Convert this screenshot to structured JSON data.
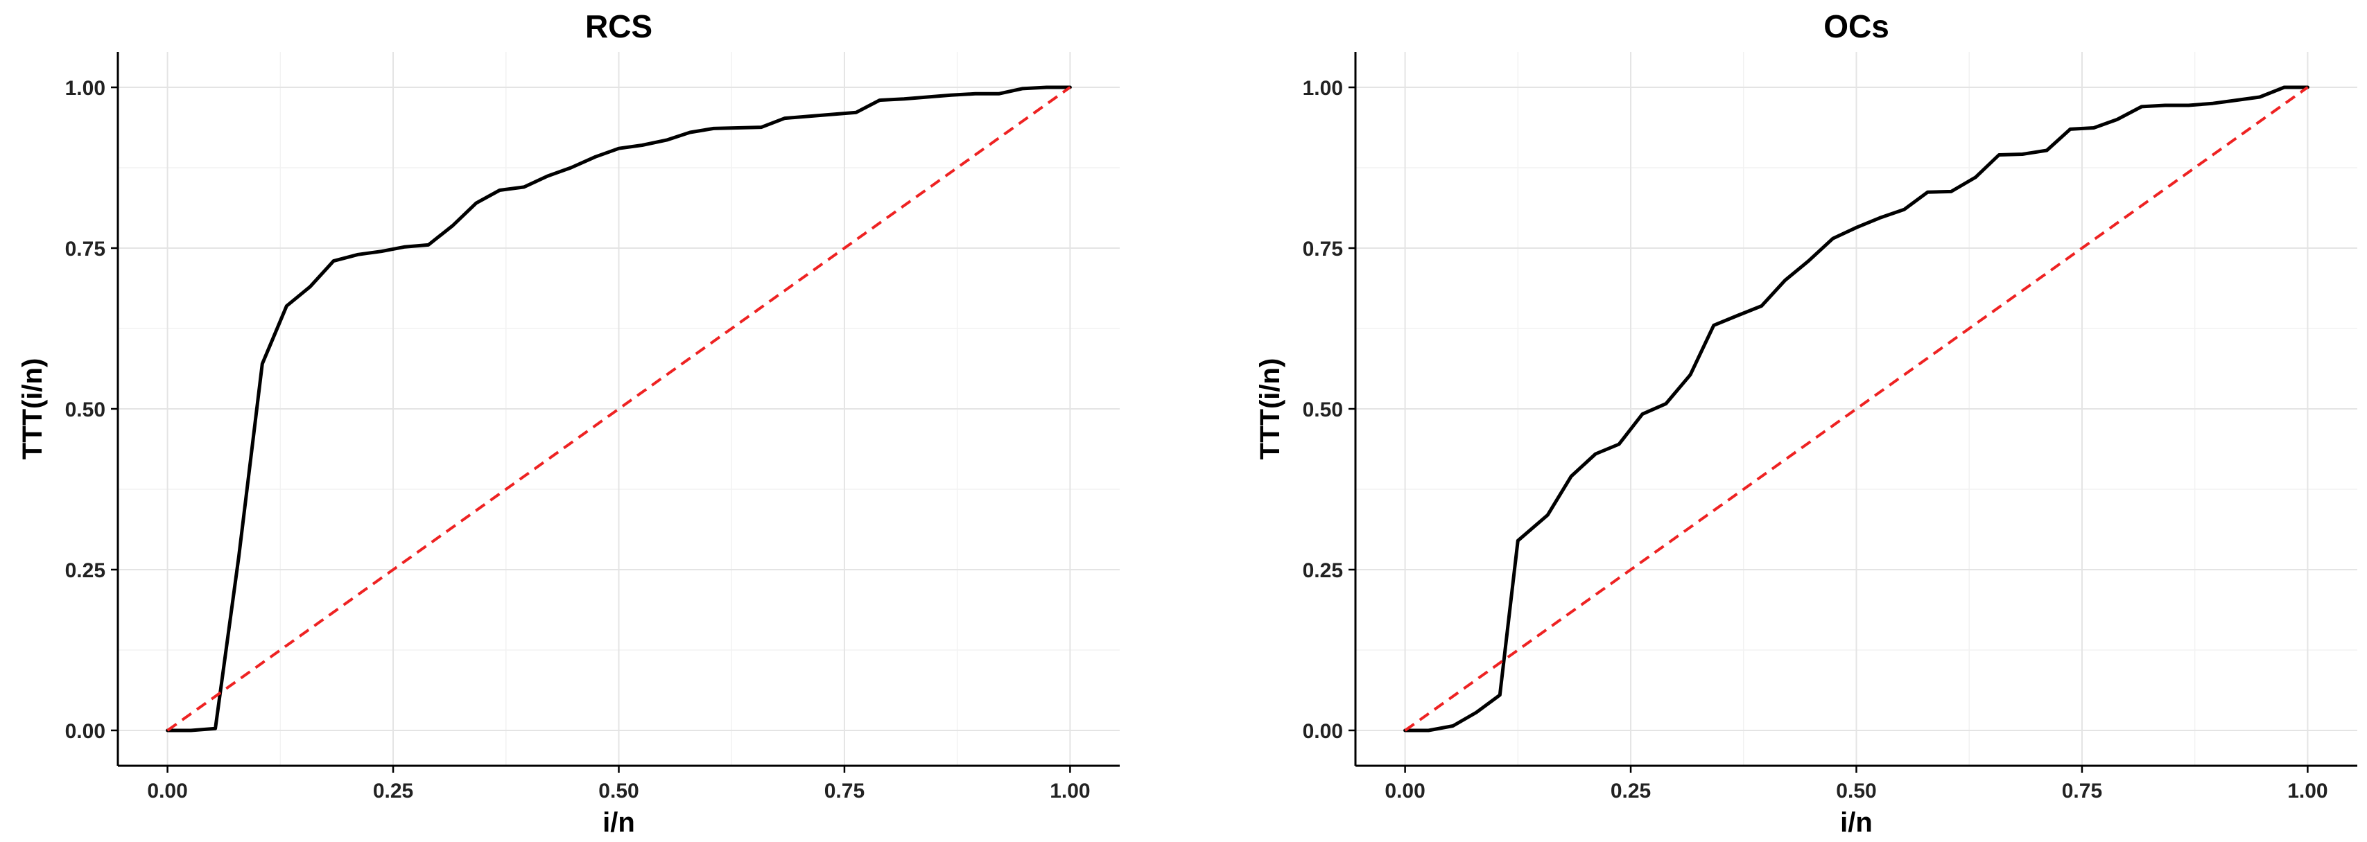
{
  "chart_data": [
    {
      "type": "line",
      "title": "RCS",
      "xlabel": "i/n",
      "ylabel": "TTT(i/n)",
      "xlim": [
        0,
        1
      ],
      "ylim": [
        0,
        1
      ],
      "xticks": [
        "0.00",
        "0.25",
        "0.50",
        "0.75",
        "1.00"
      ],
      "yticks": [
        "0.00",
        "0.25",
        "0.50",
        "0.75",
        "1.00"
      ],
      "grid": true,
      "series": [
        {
          "style": "solid",
          "color": "#000000",
          "x": [
            0.0,
            0.026,
            0.053,
            0.079,
            0.105,
            0.132,
            0.158,
            0.184,
            0.211,
            0.237,
            0.263,
            0.289,
            0.316,
            0.342,
            0.368,
            0.395,
            0.421,
            0.447,
            0.474,
            0.5,
            0.526,
            0.553,
            0.579,
            0.605,
            0.632,
            0.658,
            0.684,
            0.711,
            0.737,
            0.763,
            0.789,
            0.816,
            0.842,
            0.868,
            0.895,
            0.921,
            0.947,
            0.974,
            1.0
          ],
          "y": [
            0.0,
            0.0,
            0.003,
            0.27,
            0.57,
            0.66,
            0.69,
            0.73,
            0.74,
            0.745,
            0.752,
            0.755,
            0.785,
            0.82,
            0.84,
            0.845,
            0.862,
            0.875,
            0.892,
            0.905,
            0.91,
            0.918,
            0.93,
            0.936,
            0.937,
            0.938,
            0.952,
            0.955,
            0.958,
            0.961,
            0.98,
            0.982,
            0.985,
            0.988,
            0.99,
            0.99,
            0.998,
            1.0,
            1.0
          ]
        },
        {
          "style": "dashed",
          "color": "#ee2222",
          "x": [
            0,
            1
          ],
          "y": [
            0,
            1
          ]
        }
      ]
    },
    {
      "type": "line",
      "title": "OCs",
      "xlabel": "i/n",
      "ylabel": "TTT(i/n)",
      "xlim": [
        0,
        1
      ],
      "ylim": [
        0,
        1
      ],
      "xticks": [
        "0.00",
        "0.25",
        "0.50",
        "0.75",
        "1.00"
      ],
      "yticks": [
        "0.00",
        "0.25",
        "0.50",
        "0.75",
        "1.00"
      ],
      "grid": true,
      "series": [
        {
          "style": "solid",
          "color": "#000000",
          "x": [
            0.0,
            0.026,
            0.053,
            0.079,
            0.105,
            0.125,
            0.158,
            0.184,
            0.211,
            0.237,
            0.263,
            0.289,
            0.316,
            0.342,
            0.368,
            0.395,
            0.421,
            0.447,
            0.474,
            0.5,
            0.526,
            0.553,
            0.579,
            0.605,
            0.632,
            0.658,
            0.684,
            0.711,
            0.737,
            0.763,
            0.789,
            0.816,
            0.842,
            0.868,
            0.895,
            0.921,
            0.947,
            0.974,
            1.0
          ],
          "y": [
            0.0,
            0.0,
            0.007,
            0.028,
            0.055,
            0.295,
            0.335,
            0.395,
            0.43,
            0.445,
            0.492,
            0.508,
            0.553,
            0.63,
            0.645,
            0.66,
            0.7,
            0.73,
            0.765,
            0.782,
            0.797,
            0.81,
            0.837,
            0.838,
            0.86,
            0.895,
            0.896,
            0.902,
            0.935,
            0.937,
            0.95,
            0.97,
            0.972,
            0.972,
            0.975,
            0.98,
            0.985,
            1.0,
            1.0
          ]
        },
        {
          "style": "dashed",
          "color": "#ee2222",
          "x": [
            0,
            1
          ],
          "y": [
            0,
            1
          ]
        }
      ]
    }
  ]
}
